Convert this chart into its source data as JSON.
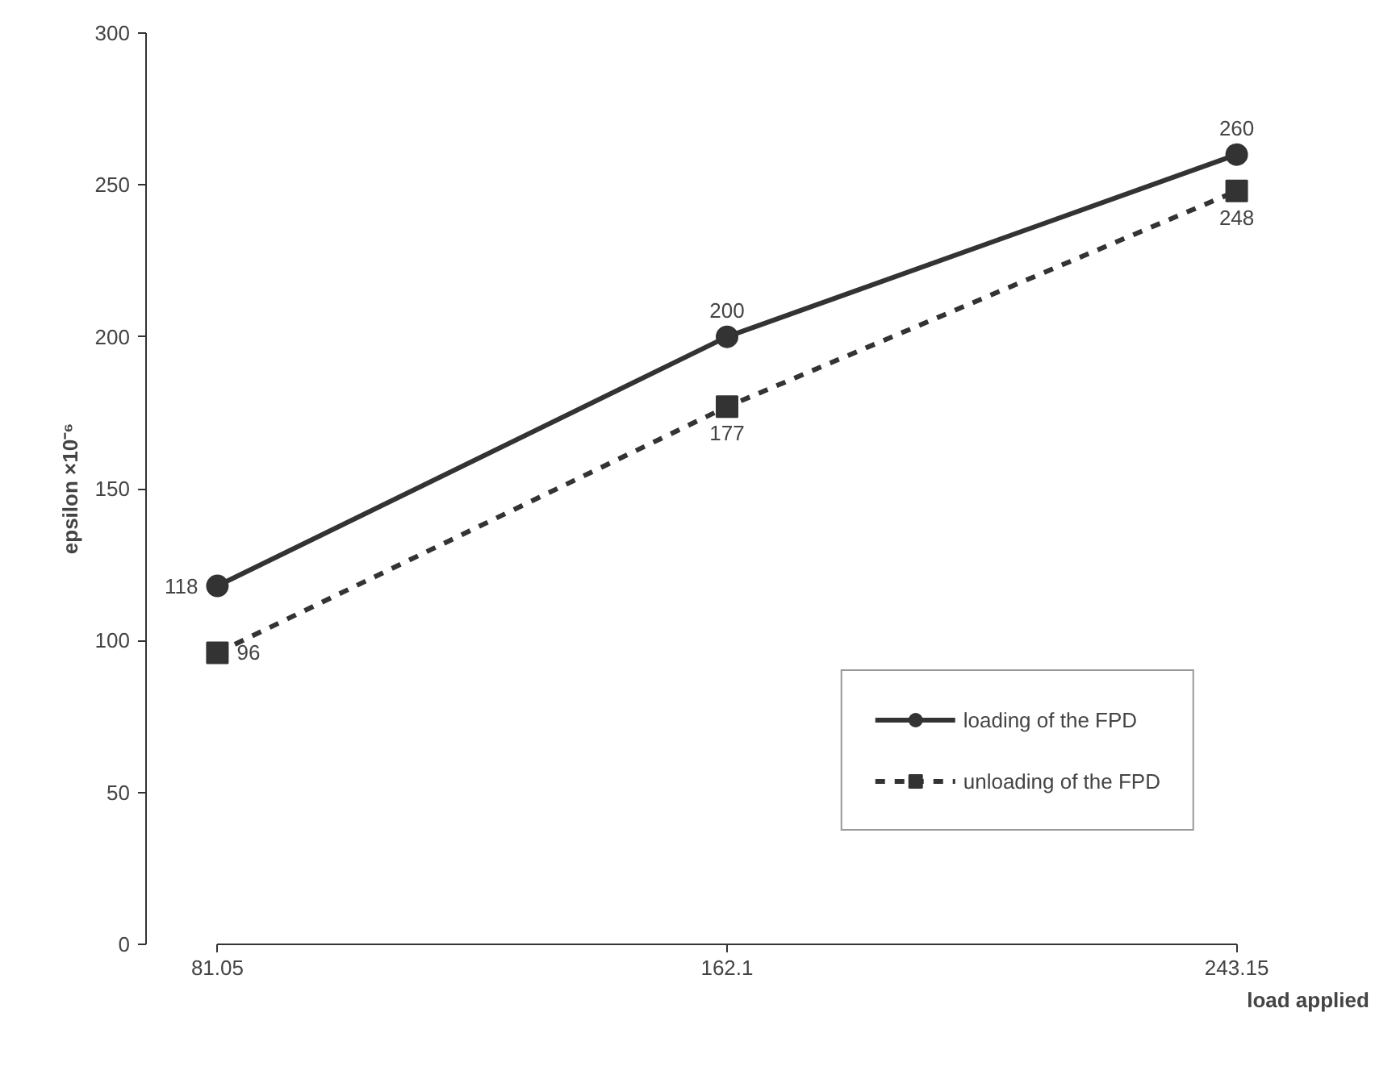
{
  "chart_data": {
    "type": "line",
    "xlabel": "load applied",
    "ylabel": "epsilon ×10⁻⁶",
    "x": [
      81.05,
      162.1,
      243.15
    ],
    "xlim": [
      81.05,
      243.15
    ],
    "xticks": [
      81.05,
      162.1,
      243.15
    ],
    "ylim": [
      0,
      300
    ],
    "yticks": [
      0,
      50,
      100,
      150,
      200,
      250,
      300
    ],
    "grid": false,
    "legend": "bottom right",
    "data_labels": true,
    "series": [
      {
        "name": "loading of the FPD",
        "color": "#333333",
        "values": [
          118,
          200,
          260
        ],
        "marker": "circle",
        "line_style": "solid"
      },
      {
        "name": "unloading of the FPD",
        "color": "#333333",
        "values": [
          96,
          177,
          248
        ],
        "marker": "square",
        "line_style": "dashed"
      }
    ]
  }
}
